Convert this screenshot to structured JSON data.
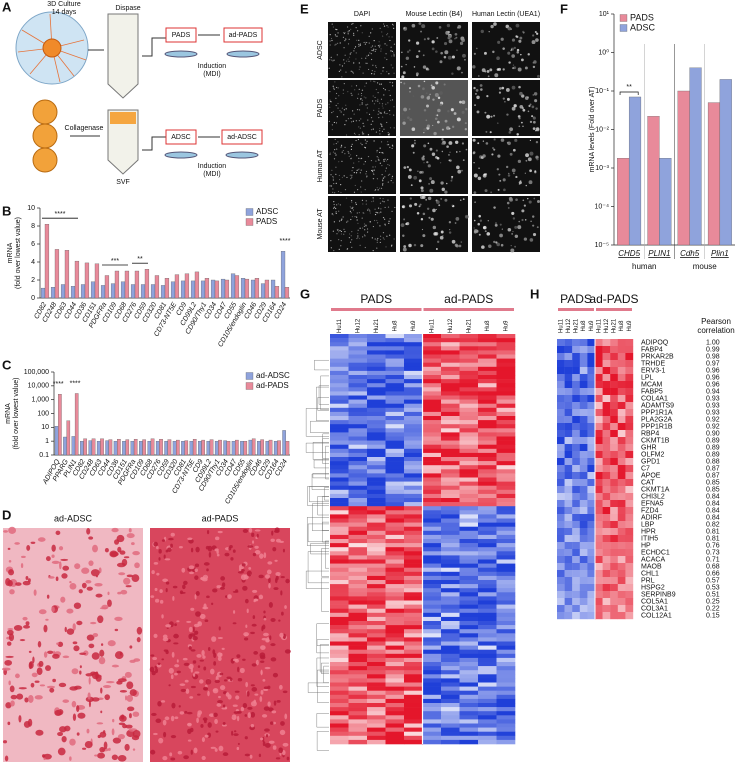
{
  "panel_labels": [
    "A",
    "B",
    "C",
    "D",
    "E",
    "F",
    "G",
    "H"
  ],
  "panel_a": {
    "culture": [
      "3D Culture",
      "14 days"
    ],
    "dispase": "Dispase",
    "pads": "PADS",
    "ad_pads": "ad-PADS",
    "induction_top": [
      "Induction",
      "(MDI)"
    ],
    "collagenase": "Collagenase",
    "adsc": "ADSC",
    "ad_adsc": "ad-ADSC",
    "induction_bottom": [
      "Induction",
      "(MDI)"
    ],
    "svf": "SVF"
  },
  "chart_data": [
    {
      "type": "bar",
      "ylabel": [
        "mRNA",
        "(fold over lowest value)"
      ],
      "categories": [
        "CD82",
        "CD248",
        "CD63",
        "CD44",
        "CD36",
        "CD151",
        "PDGFRa",
        "CD109",
        "CD68",
        "CD276",
        "CD59",
        "CD320",
        "CD81",
        "CD73-NT5E",
        "CD9",
        "CD99L2",
        "CD90/Thy1",
        "CD34",
        "CD47",
        "CD55",
        "CD105/endoglin",
        "CD46",
        "CD29",
        "CD164",
        "CD24"
      ],
      "series": [
        {
          "name": "ADSC",
          "color": "#8fa3dc",
          "values": [
            1.1,
            1.2,
            1.5,
            1.3,
            1.5,
            1.8,
            1.4,
            1.6,
            1.8,
            1.5,
            1.5,
            1.5,
            1.4,
            1.8,
            1.9,
            1.9,
            1.9,
            2.0,
            2.1,
            2.7,
            2.2,
            2.0,
            1.6,
            2.0,
            5.2
          ]
        },
        {
          "name": "PADS",
          "color": "#e88a9a",
          "values": [
            8.2,
            5.4,
            5.3,
            4.1,
            3.9,
            3.8,
            2.5,
            3.0,
            3.0,
            3.0,
            3.2,
            2.5,
            2.2,
            2.6,
            2.7,
            2.9,
            2.2,
            1.9,
            2.0,
            2.5,
            2.1,
            2.2,
            2.0,
            1.3,
            1.2
          ]
        }
      ],
      "ylim": [
        0,
        10
      ],
      "yticks": [
        0,
        2,
        4,
        6,
        8,
        10
      ],
      "legend": "upper right",
      "annotations": [
        "****",
        "***",
        "**",
        "****"
      ]
    },
    {
      "type": "bar",
      "log": true,
      "ylabel": [
        "mRNA",
        "(fold over lowest value)"
      ],
      "categories": [
        "ADIPOQ",
        "PPARG",
        "PLIN1",
        "CD82",
        "CD248",
        "CD63",
        "CD44",
        "CD36",
        "CD151",
        "PDGFRa",
        "CD109",
        "CD68",
        "CD276",
        "CD59",
        "CD320",
        "CD81",
        "CD73-NT5E",
        "CD9",
        "CD99L2",
        "CD90/Thy1",
        "CD34",
        "CD47",
        "CD55",
        "CD105/endoglin",
        "CD46",
        "CD29",
        "CD164",
        "CD24"
      ],
      "series": [
        {
          "name": "ad-ADSC",
          "color": "#8fa3dc",
          "values": [
            12,
            2.0,
            2.2,
            1.0,
            1.1,
            1.0,
            1.1,
            1.0,
            1.0,
            1.0,
            1.0,
            1.0,
            1.0,
            1.0,
            1.0,
            1.0,
            1.0,
            1.0,
            1.0,
            1.0,
            1.1,
            1.0,
            1.0,
            1.2,
            1.0,
            1.0,
            1.0,
            6.0
          ]
        },
        {
          "name": "ad-PADS",
          "color": "#e88a9a",
          "values": [
            2500,
            30,
            2800,
            1.5,
            1.5,
            1.5,
            1.3,
            1.4,
            1.3,
            1.4,
            1.3,
            1.5,
            1.4,
            1.3,
            1.2,
            1.1,
            1.4,
            1.2,
            1.3,
            1.2,
            1.0,
            1.2,
            1.0,
            1.5,
            1.3,
            1.2,
            1.1,
            1.0
          ]
        }
      ],
      "ylim": [
        0.1,
        100000
      ],
      "yticks": [
        0.1,
        1,
        10,
        100,
        {
          "value": 1000,
          "label": "1,000"
        },
        {
          "value": 10000,
          "label": "10,000"
        },
        {
          "value": 100000,
          "label": "100,000"
        }
      ],
      "legend": "upper right",
      "annotations": [
        "****",
        "****"
      ]
    },
    {
      "type": "bar",
      "log": true,
      "ylabel": [
        "mRNA levels (Fold over AT)"
      ],
      "categories": [
        "CHD5",
        "PLIN1",
        "Cdh5",
        "Plin1"
      ],
      "groups": [
        "human",
        "mouse"
      ],
      "series": [
        {
          "name": "PADS",
          "color": "#e88a9a",
          "values": [
            0.0018,
            0.022,
            0.1,
            0.05
          ]
        },
        {
          "name": "ADSC",
          "color": "#8fa3dc",
          "values": [
            0.07,
            0.0018,
            0.4,
            0.2
          ]
        }
      ],
      "ylim": [
        1e-05,
        10
      ],
      "yticks": [
        {
          "value": 1e-05,
          "label": "10⁻⁵"
        },
        {
          "value": 0.0001,
          "label": "10⁻⁴"
        },
        {
          "value": 0.001,
          "label": "10⁻³"
        },
        {
          "value": 0.01,
          "label": "10⁻²"
        },
        {
          "value": 0.1,
          "label": "10⁻¹"
        },
        {
          "value": 1,
          "label": "10⁰"
        },
        {
          "value": 10,
          "label": "10¹"
        }
      ],
      "legend": "upper left",
      "annotations": [
        "**"
      ]
    }
  ],
  "panel_d": {
    "titles": [
      "ad-ADSC",
      "ad-PADS"
    ]
  },
  "panel_e": {
    "columns": [
      "DAPI",
      "Mouse Lectin (B4)",
      "Human Lectin (UEA1)"
    ],
    "rows": [
      "ADSC",
      "PADS",
      "Human AT",
      "Mouse AT"
    ]
  },
  "panel_g": {
    "groups": [
      "PADS",
      "ad-PADS"
    ],
    "samples": [
      "Hu11",
      "Hu12",
      "Hu21",
      "Hu8",
      "Hu9",
      "Hu11",
      "Hu12",
      "Hu21",
      "Hu8",
      "Hu9"
    ]
  },
  "panel_h": {
    "groups": [
      "PADS",
      "ad-PADS"
    ],
    "samples": [
      "Hu11",
      "Hu12",
      "Hu21",
      "Hu8",
      "Hu9",
      "Hu11",
      "Hu12",
      "Hu21",
      "Hu8",
      "Hu9"
    ],
    "correlation_title": [
      "Pearson",
      "correlation"
    ],
    "genes": [
      "ADIPOQ",
      "FABP4",
      "PRKAR2B",
      "TRHDE",
      "ERV3-1",
      "LPL",
      "MCAM",
      "FABP5",
      "COL4A1",
      "ADAMTS9",
      "PPP1R1A",
      "PLA2G2A",
      "PPP1R1B",
      "RBP4",
      "CKMT1B",
      "GHR",
      "OLFM2",
      "GPD1",
      "C7",
      "APOE",
      "CAT",
      "CKMT1A",
      "CHI3L2",
      "EFNA5",
      "FZD4",
      "ADIRF",
      "LBP",
      "HPR",
      "ITIH5",
      "HP",
      "ECHDC1",
      "ACACA",
      "MAOB",
      "CHL1",
      "PRL",
      "HSPG2",
      "SERPINB9",
      "COL5A1",
      "COL3A1",
      "COL12A1"
    ],
    "correlations": [
      "1.00",
      "0.99",
      "0.98",
      "0.97",
      "0.96",
      "0.96",
      "0.96",
      "0.94",
      "0.93",
      "0.93",
      "0.93",
      "0.92",
      "0.92",
      "0.90",
      "0.89",
      "0.89",
      "0.89",
      "0.88",
      "0.87",
      "0.87",
      "0.85",
      "0.85",
      "0.84",
      "0.84",
      "0.84",
      "0.84",
      "0.82",
      "0.81",
      "0.81",
      "0.76",
      "0.73",
      "0.71",
      "0.68",
      "0.66",
      "0.57",
      "0.53",
      "0.51",
      "0.25",
      "0.22",
      "0.15"
    ]
  }
}
